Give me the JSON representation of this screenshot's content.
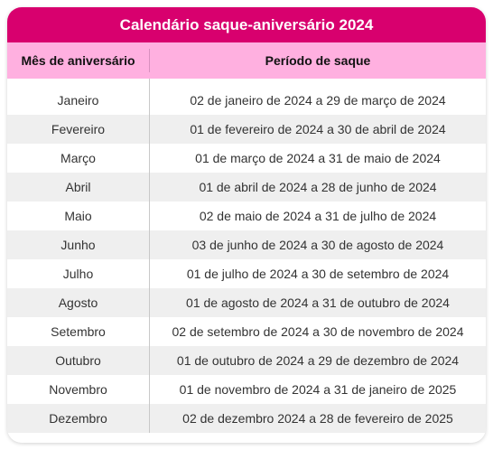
{
  "table": {
    "title": "Calendário saque-aniversário 2024",
    "headers": {
      "month": "Mês de aniversário",
      "period": "Período de saque"
    },
    "rows": [
      {
        "month": "Janeiro",
        "period": "02 de janeiro de 2024 a 29 de março de 2024"
      },
      {
        "month": "Fevereiro",
        "period": "01 de fevereiro de 2024 a 30 de abril de 2024"
      },
      {
        "month": "Março",
        "period": "01 de março de 2024 a 31 de maio de 2024"
      },
      {
        "month": "Abril",
        "period": "01 de abril de 2024 a 28 de junho de 2024"
      },
      {
        "month": "Maio",
        "period": "02 de maio de 2024 a 31 de julho de 2024"
      },
      {
        "month": "Junho",
        "period": "03 de junho de 2024 a 30 de agosto de 2024"
      },
      {
        "month": "Julho",
        "period": "01 de julho de 2024 a 30 de setembro de 2024"
      },
      {
        "month": "Agosto",
        "period": "01 de agosto de 2024 a 31 de outubro de 2024"
      },
      {
        "month": "Setembro",
        "period": "02 de setembro de 2024 a 30 de novembro de 2024"
      },
      {
        "month": "Outubro",
        "period": "01 de outubro de 2024 a 29 de dezembro de 2024"
      },
      {
        "month": "Novembro",
        "period": "01 de novembro de 2024 a 31 de janeiro de 2025"
      },
      {
        "month": "Dezembro",
        "period": "02 de dezembro 2024 a 28 de fevereiro de 2025"
      }
    ]
  },
  "colors": {
    "title_background": "#d8006e",
    "header_background": "#ffb0e0",
    "alternate_row": "#efefef"
  }
}
